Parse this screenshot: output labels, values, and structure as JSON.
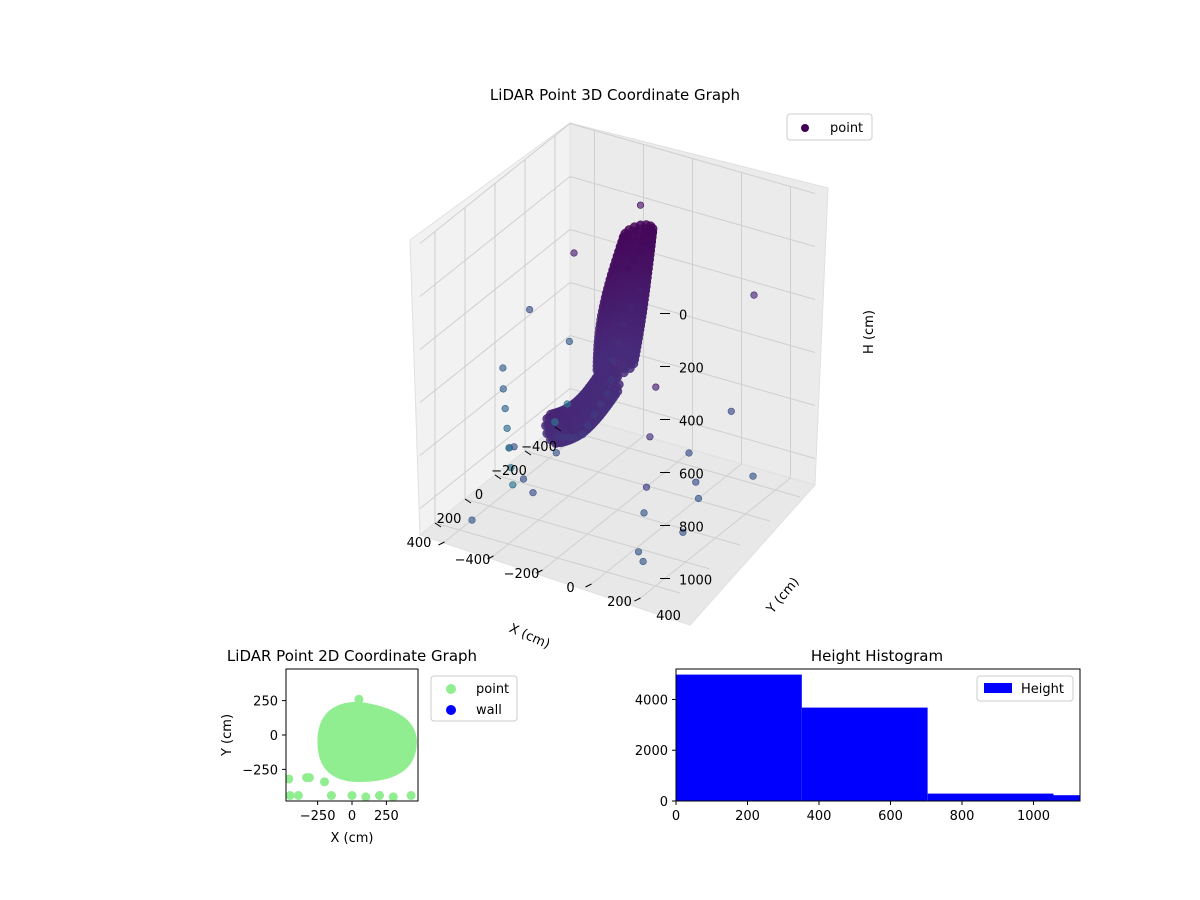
{
  "chart_data": [
    {
      "type": "scatter3d",
      "title": "LiDAR Point 3D Coordinate Graph",
      "xlabel": "X (cm)",
      "ylabel": "Y (cm)",
      "zlabel": "H (cm)",
      "xlim": [
        -500,
        500
      ],
      "ylim": [
        -500,
        500
      ],
      "zlim": [
        0,
        1100
      ],
      "z_inverted": true,
      "x_ticks": [
        -400,
        -200,
        0,
        200,
        400
      ],
      "y_ticks": [
        -400,
        -200,
        0,
        200,
        400
      ],
      "z_ticks": [
        0,
        200,
        400,
        600,
        800,
        1000
      ],
      "legend": {
        "entries": [
          "point"
        ],
        "placement": "top-right"
      },
      "grid": true,
      "colormap": "viridis",
      "series": [
        {
          "name": "point",
          "points": [
            [
              -60,
              80,
              60
            ],
            [
              -30,
              85,
              80
            ],
            [
              0,
              90,
              100
            ],
            [
              30,
              85,
              120
            ],
            [
              60,
              80,
              140
            ],
            [
              -80,
              40,
              300
            ],
            [
              -60,
              20,
              360
            ],
            [
              -40,
              0,
              420
            ],
            [
              -20,
              -10,
              480
            ],
            [
              0,
              -20,
              540
            ],
            [
              40,
              0,
              590
            ],
            [
              100,
              20,
              610
            ],
            [
              160,
              30,
              620
            ],
            [
              220,
              40,
              630
            ],
            [
              280,
              50,
              640
            ],
            [
              330,
              60,
              650
            ],
            [
              380,
              60,
              640
            ],
            [
              420,
              60,
              620
            ],
            [
              460,
              60,
              600
            ],
            [
              500,
              60,
              580
            ],
            [
              -480,
              -200,
              220
            ],
            [
              -420,
              300,
              400
            ],
            [
              -350,
              250,
              820
            ],
            [
              -300,
              -380,
              700
            ],
            [
              -250,
              400,
              980
            ],
            [
              -200,
              -300,
              300
            ],
            [
              -150,
              200,
              900
            ],
            [
              -100,
              -420,
              500
            ],
            [
              -50,
              300,
              1000
            ],
            [
              0,
              -250,
              950
            ],
            [
              50,
              350,
              880
            ],
            [
              100,
              -380,
              920
            ],
            [
              150,
              200,
              990
            ],
            [
              200,
              -300,
              850
            ],
            [
              250,
              420,
              960
            ],
            [
              300,
              -200,
              900
            ],
            [
              350,
              300,
              1020
            ],
            [
              400,
              -100,
              880
            ],
            [
              450,
              380,
              990
            ],
            [
              480,
              -300,
              1000
            ],
            [
              -20,
              -480,
              700
            ],
            [
              10,
              -460,
              760
            ],
            [
              30,
              -440,
              820
            ],
            [
              50,
              -420,
              880
            ],
            [
              70,
              -400,
              940
            ],
            [
              90,
              -380,
              1000
            ],
            [
              110,
              -360,
              1050
            ],
            [
              -400,
              -450,
              1000
            ],
            [
              -350,
              -470,
              1050
            ],
            [
              480,
              450,
              300
            ],
            [
              470,
              420,
              500
            ],
            [
              460,
              400,
              700
            ]
          ]
        }
      ]
    },
    {
      "type": "scatter",
      "title": "LiDAR Point 2D Coordinate Graph",
      "xlabel": "X (cm)",
      "ylabel": "Y (cm)",
      "xlim": [
        -480,
        480
      ],
      "ylim": [
        -480,
        480
      ],
      "x_ticks": [
        -250,
        0,
        250
      ],
      "y_ticks": [
        -250,
        0,
        250
      ],
      "legend": {
        "entries": [
          "point",
          "wall"
        ],
        "placement": "outside-right"
      },
      "series": [
        {
          "name": "point",
          "color": "#90ee90",
          "cluster": {
            "x_range": [
              -230,
              450
            ],
            "y_range": [
              -320,
              220
            ]
          },
          "points": [
            [
              50,
              260
            ],
            [
              -20,
              200
            ],
            [
              -460,
              -320
            ],
            [
              -450,
              -440
            ],
            [
              -330,
              -310
            ],
            [
              -310,
              -310
            ],
            [
              -200,
              -340
            ],
            [
              -150,
              -440
            ],
            [
              0,
              -440
            ],
            [
              100,
              -450
            ],
            [
              200,
              -440
            ],
            [
              300,
              -450
            ],
            [
              430,
              -440
            ],
            [
              -390,
              -440
            ]
          ]
        },
        {
          "name": "wall",
          "color": "#0000ff",
          "points": []
        }
      ]
    },
    {
      "type": "bar",
      "title": "Height Histogram",
      "xlabel": "",
      "ylabel": "",
      "xlim": [
        0,
        1130
      ],
      "ylim": [
        0,
        5200
      ],
      "x_ticks": [
        0,
        200,
        400,
        600,
        800,
        1000
      ],
      "y_ticks": [
        0,
        2000,
        4000
      ],
      "legend": {
        "entries": [
          "Height"
        ],
        "placement": "top-right"
      },
      "series": [
        {
          "name": "Height",
          "color": "#0000ff",
          "bins": [
            {
              "x0": 0,
              "x1": 352,
              "value": 4980
            },
            {
              "x0": 352,
              "x1": 704,
              "value": 3680
            },
            {
              "x0": 704,
              "x1": 1056,
              "value": 290
            },
            {
              "x0": 1056,
              "x1": 1130,
              "value": 230
            }
          ]
        }
      ]
    }
  ]
}
